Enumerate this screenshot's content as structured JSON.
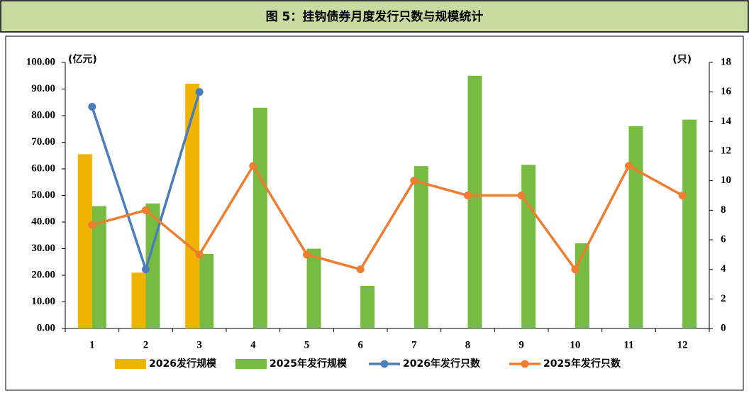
{
  "chart_data": {
    "type": "bar-line",
    "title": "图 5：挂钩债券月度发行只数与规模统计",
    "y_unit": "(亿元)",
    "y2_unit": "(只)",
    "categories": [
      "1",
      "2",
      "3",
      "4",
      "5",
      "6",
      "7",
      "8",
      "9",
      "10",
      "11",
      "12"
    ],
    "series": [
      {
        "name": "2026发行规模",
        "kind": "bar",
        "color": "#f0b400",
        "values": [
          65.5,
          21,
          92,
          null,
          null,
          null,
          null,
          null,
          null,
          null,
          null,
          null
        ]
      },
      {
        "name": "2025年发行规模",
        "kind": "bar",
        "color": "#77bb41",
        "values": [
          46,
          47,
          28,
          83,
          30,
          16,
          61,
          95,
          61.5,
          32,
          76,
          78.5
        ]
      },
      {
        "name": "2026年发行只数",
        "kind": "line",
        "axis": "y2",
        "color": "#4a7ebb",
        "values": [
          15,
          4,
          16,
          null,
          null,
          null,
          null,
          null,
          null,
          null,
          null,
          null
        ]
      },
      {
        "name": "2025年发行只数",
        "kind": "line",
        "axis": "y2",
        "color": "#ed7d31",
        "values": [
          7,
          8,
          5,
          11,
          5,
          4,
          10,
          9,
          9,
          4,
          11,
          9
        ]
      }
    ],
    "ylim": [
      0,
      100
    ],
    "yticks": [
      {
        "value": 0,
        "label": "0.00"
      },
      {
        "value": 10,
        "label": "10.00"
      },
      {
        "value": 20,
        "label": "20.00"
      },
      {
        "value": 30,
        "label": "30.00"
      },
      {
        "value": 40,
        "label": "40.00"
      },
      {
        "value": 50,
        "label": "50.00"
      },
      {
        "value": 60,
        "label": "60.00"
      },
      {
        "value": 70,
        "label": "70.00"
      },
      {
        "value": 80,
        "label": "80.00"
      },
      {
        "value": 90,
        "label": "90.00"
      },
      {
        "value": 100,
        "label": "100.00"
      }
    ],
    "y2lim": [
      0,
      18
    ],
    "y2ticks": [
      0,
      2,
      4,
      6,
      8,
      10,
      12,
      14,
      16,
      18
    ]
  }
}
